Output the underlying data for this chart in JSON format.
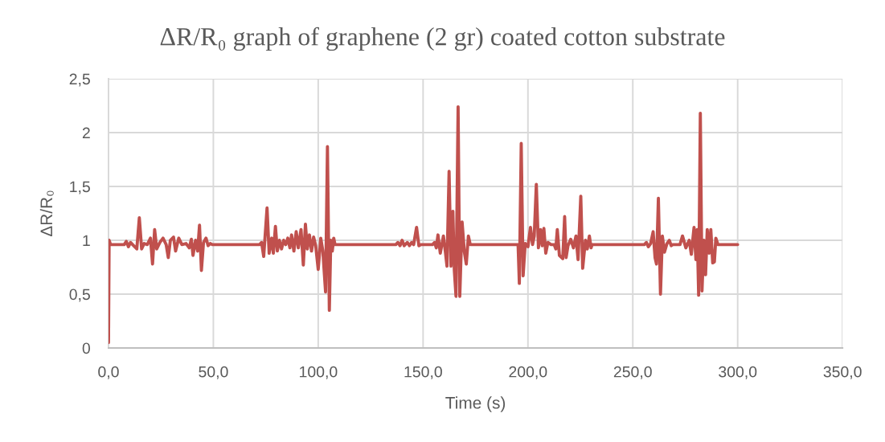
{
  "chart_data": {
    "type": "line",
    "title": "ΔR/R₀ graph of graphene (2 gr) coated cotton substrate",
    "xlabel": "Time (s)",
    "ylabel": "ΔR/R₀",
    "x": [
      0,
      0.3,
      1,
      7.5,
      8.5,
      9.5,
      10.5,
      11.5,
      13.5,
      14.7,
      15.8,
      17,
      18.5,
      20,
      21,
      22,
      23,
      24.5,
      26,
      27.5,
      28.5,
      29.5,
      31,
      32,
      33.5,
      35,
      37,
      38.5,
      39.5,
      40.3,
      41.5,
      42.5,
      43.4,
      44.3,
      45.3,
      46.5,
      47.5,
      48.5,
      49.5,
      72,
      73,
      74,
      75.6,
      76.6,
      77.8,
      78.6,
      79.6,
      80.5,
      81.5,
      82.5,
      83.5,
      84.5,
      85.5,
      86.5,
      87.3,
      88.4,
      89.5,
      90.5,
      91.8,
      92.9,
      93.9,
      94.8,
      95.8,
      96.8,
      97.8,
      98.8,
      100,
      101.2,
      102.2,
      103.5,
      104.4,
      105.3,
      106,
      106.7,
      107.4,
      108,
      137,
      138,
      139,
      140,
      141,
      142.5,
      143.5,
      144.5,
      145.5,
      146.9,
      148,
      149,
      154.5,
      155.5,
      156.3,
      157.1,
      158.2,
      159.7,
      160.6,
      161.4,
      162.4,
      163.3,
      164.2,
      164.9,
      165.7,
      166.7,
      167.5,
      168.6,
      169.7,
      170.6,
      171.6,
      172.5,
      195.3,
      195.9,
      196.8,
      197.7,
      198.7,
      200,
      201.2,
      202.2,
      203,
      204,
      205,
      206,
      206.8,
      207.6,
      208.5,
      209.5,
      211,
      212.5,
      213.3,
      214,
      215,
      216.6,
      217.5,
      218.2,
      219.1,
      220.4,
      221.7,
      222.9,
      223.9,
      225.2,
      226.1,
      227.4,
      228.3,
      229.3,
      230.1,
      230.6,
      255.5,
      256.5,
      257.4,
      258.5,
      259.7,
      260.6,
      261.3,
      262.2,
      263.2,
      264.1,
      265.1,
      266.3,
      267.4,
      268.3,
      269,
      272.5,
      273.7,
      275.3,
      276.9,
      277.9,
      279.2,
      280.1,
      280.7,
      281.4,
      282.2,
      283,
      283.9,
      284.7,
      285.5,
      286.4,
      287.2,
      288.1,
      288.9,
      289.6,
      290.6,
      300
    ],
    "series": [
      {
        "color": "#c0504d",
        "values": [
          0.05,
          1.0,
          0.96,
          0.96,
          0.99,
          0.94,
          0.98,
          0.96,
          0.92,
          1.21,
          0.92,
          0.97,
          0.96,
          1.02,
          0.78,
          1.1,
          0.92,
          0.98,
          1.02,
          0.96,
          0.84,
          1.0,
          1.03,
          0.9,
          1.02,
          0.96,
          0.97,
          0.93,
          1.01,
          0.86,
          1.0,
          0.9,
          1.14,
          0.72,
          0.98,
          1.02,
          0.95,
          0.97,
          0.96,
          0.96,
          0.98,
          0.85,
          1.3,
          0.88,
          1.02,
          0.88,
          1.13,
          0.9,
          1.0,
          0.92,
          1.0,
          0.96,
          1.02,
          0.93,
          1.05,
          0.9,
          1.08,
          0.93,
          1.1,
          0.77,
          1.15,
          0.92,
          1.05,
          0.9,
          1.03,
          0.95,
          0.73,
          1.02,
          0.9,
          0.52,
          1.87,
          0.35,
          1.0,
          0.9,
          1.02,
          0.96,
          0.96,
          0.98,
          0.95,
          1.0,
          0.95,
          0.98,
          0.95,
          0.98,
          0.96,
          1.12,
          0.95,
          0.96,
          0.96,
          0.98,
          0.93,
          1.05,
          0.88,
          1.04,
          0.9,
          0.76,
          1.64,
          0.76,
          1.27,
          0.72,
          0.48,
          2.24,
          0.48,
          1.17,
          0.89,
          0.78,
          1.04,
          0.96,
          0.96,
          0.6,
          1.9,
          0.67,
          0.97,
          0.94,
          1.12,
          0.96,
          1.04,
          1.52,
          0.93,
          1.1,
          0.95,
          1.11,
          0.88,
          0.98,
          0.96,
          0.96,
          0.92,
          1.1,
          0.86,
          0.83,
          1.22,
          0.84,
          0.95,
          1.01,
          0.93,
          1.04,
          0.82,
          1.41,
          0.74,
          1.0,
          0.92,
          1.04,
          0.93,
          0.96,
          0.96,
          0.98,
          0.94,
          0.97,
          1.08,
          0.84,
          0.78,
          1.39,
          0.5,
          1.04,
          0.89,
          0.97,
          1.0,
          0.95,
          0.96,
          0.96,
          1.04,
          0.93,
          1.0,
          0.87,
          1.12,
          0.82,
          1.1,
          0.49,
          2.18,
          0.53,
          1.0,
          0.68,
          1.1,
          0.88,
          1.1,
          0.79,
          0.8,
          1.02,
          0.96,
          0.96
        ]
      }
    ],
    "xlim": [
      0,
      350
    ],
    "ylim": [
      0,
      2.5
    ],
    "xticks": [
      {
        "value": 0,
        "label": "0,0"
      },
      {
        "value": 50,
        "label": "50,0"
      },
      {
        "value": 100,
        "label": "100,0"
      },
      {
        "value": 150,
        "label": "150,0"
      },
      {
        "value": 200,
        "label": "200,0"
      },
      {
        "value": 250,
        "label": "250,0"
      },
      {
        "value": 300,
        "label": "300,0"
      },
      {
        "value": 350,
        "label": "350,0"
      }
    ],
    "yticks": [
      0,
      {
        "value": 0.5,
        "label": "0,5"
      },
      1,
      {
        "value": 1.5,
        "label": "1,5"
      },
      2,
      {
        "value": 2.5,
        "label": "2,5"
      }
    ],
    "grid": true,
    "line_style": "solid"
  }
}
